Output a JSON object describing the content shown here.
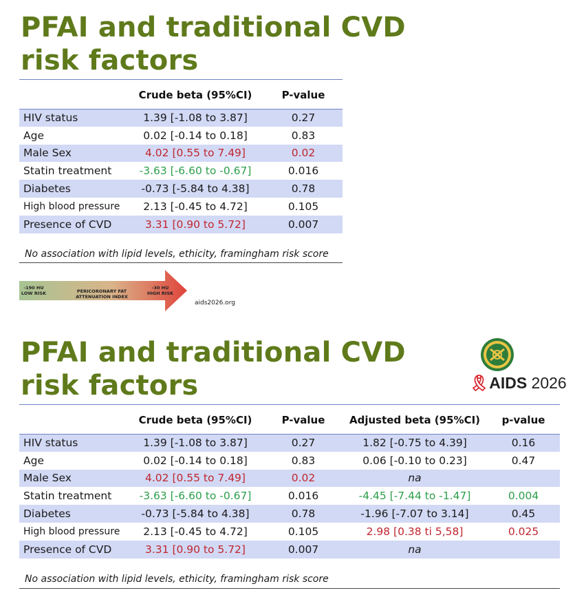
{
  "slide1": {
    "title_line1": "PFAI and traditional CVD",
    "title_line2": "risk factors",
    "headers": [
      "",
      "Crude beta (95%CI)",
      "P-value"
    ],
    "rows": [
      {
        "label": "HIV status",
        "crude": "1.39 [-1.08 to 3.87]",
        "p": "0.27"
      },
      {
        "label": "Age",
        "crude": "0.02 [-0.14 to 0.18]",
        "p": "0.83"
      },
      {
        "label": "Male Sex",
        "crude": "4.02 [0.55 to 7.49]",
        "p": "0.02"
      },
      {
        "label": "Statin treatment",
        "crude": "-3.63 [-6.60 to -0.67]",
        "p": "0.016"
      },
      {
        "label": "Diabetes",
        "crude": "-0.73 [-5.84 to 4.38]",
        "p": "0.78"
      },
      {
        "label": "High blood pressure",
        "crude": "2.13 [-0.45 to 4.72]",
        "p": "0.105"
      },
      {
        "label": "Presence of CVD",
        "crude": "3.31 [0.90 to 5.72]",
        "p": "0.007"
      }
    ],
    "footnote": "No association with lipid levels, ethicity, framingham risk score",
    "arrow": {
      "left_label_1": "-190 HU",
      "left_label_2": "LOW RISK",
      "center_label": "PERICORONARY FAT ATTENUATION INDEX",
      "right_label_1": "-30 HU",
      "right_label_2": "HIGH RISK"
    },
    "source": "aids2026.org"
  },
  "slide2": {
    "title_line1": "PFAI and traditional CVD",
    "title_line2": "risk factors",
    "headers": [
      "",
      "Crude beta (95%CI)",
      "P-value",
      "Adjusted beta (95%CI)",
      "p-value"
    ],
    "rows": [
      {
        "label": "HIV status",
        "crude": "1.39 [-1.08 to 3.87]",
        "p": "0.27",
        "adj": "1.82 [-0.75 to 4.39]",
        "p2": "0.16"
      },
      {
        "label": "Age",
        "crude": "0.02 [-0.14 to 0.18]",
        "p": "0.83",
        "adj": "0.06 [-0.10 to 0.23]",
        "p2": "0.47"
      },
      {
        "label": "Male Sex",
        "crude": "4.02 [0.55 to 7.49]",
        "p": "0.02",
        "adj": "na",
        "p2": ""
      },
      {
        "label": "Statin treatment",
        "crude": "-3.63 [-6.60 to -0.67]",
        "p": "0.016",
        "adj": "-4.45 [-7.44 to -1.47]",
        "p2": "0.004"
      },
      {
        "label": "Diabetes",
        "crude": "-0.73 [-5.84 to 4.38]",
        "p": "0.78",
        "adj": "-1.96 [-7.07 to 3.14]",
        "p2": "0.45"
      },
      {
        "label": "High blood pressure",
        "crude": "2.13 [-0.45 to 4.72]",
        "p": "0.105",
        "adj": "2.98 [0.38 ti 5,58]",
        "p2": "0.025"
      },
      {
        "label": "Presence of CVD",
        "crude": "3.31 [0.90 to 5.72]",
        "p": "0.007",
        "adj": "na",
        "p2": ""
      }
    ],
    "footnote": "No association with lipid levels, ethicity, framingham risk score",
    "logo": {
      "aids": "AIDS",
      "year": " 2026",
      "icon": "aids-ribbon-icon"
    }
  },
  "colors": {
    "title": "#5f7a1b",
    "row_shade": "#d2d9f5",
    "significant_positive": "#c0262e",
    "significant_negative": "#2c9e4a",
    "rule": "#6f82c6"
  }
}
